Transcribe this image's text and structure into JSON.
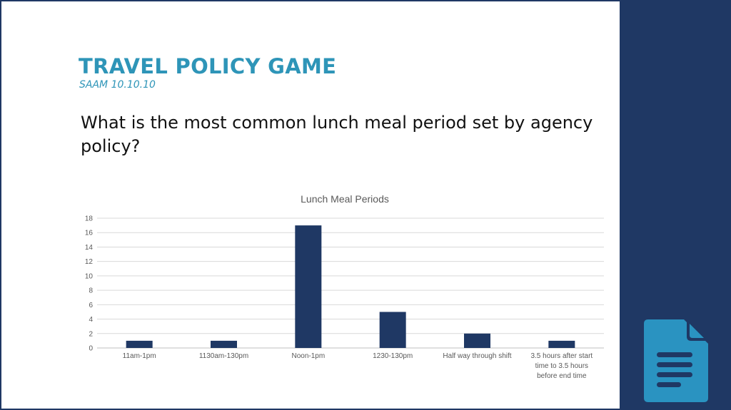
{
  "slide": {
    "title": "TRAVEL POLICY GAME",
    "subtitle": "SAAM 10.10.10",
    "question": "What is the most common lunch meal period set by agency policy?"
  },
  "icons": {
    "document": "document-icon"
  },
  "colors": {
    "background_navy": "#1f3864",
    "title_teal": "#2e95b8",
    "bar_fill": "#1f3864",
    "icon_teal": "#2a93c1"
  },
  "chart_data": {
    "type": "bar",
    "title": "Lunch Meal Periods",
    "categories": [
      "11am-1pm",
      "1130am-130pm",
      "Noon-1pm",
      "1230-130pm",
      "Half way through shift",
      "3.5 hours after start time to 3.5 hours before end time"
    ],
    "values": [
      1,
      1,
      17,
      5,
      2,
      1
    ],
    "ylim": [
      0,
      18
    ],
    "yticks": [
      0,
      2,
      4,
      6,
      8,
      10,
      12,
      14,
      16,
      18
    ],
    "grid": true,
    "legend": "none"
  }
}
